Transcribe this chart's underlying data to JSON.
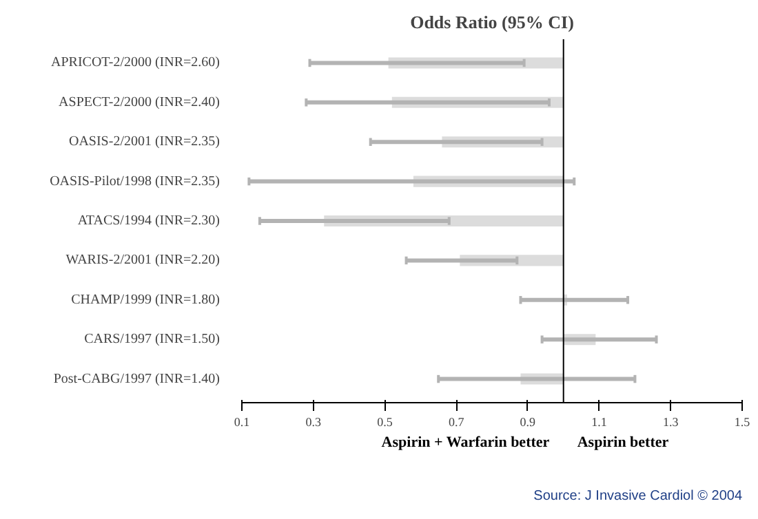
{
  "chart_data": {
    "type": "bar",
    "orientation": "horizontal",
    "title": "Odds Ratio (95% CI)",
    "categories": [
      "APRICOT-2/2000 (INR=2.60)",
      "ASPECT-2/2000 (INR=2.40)",
      "OASIS-2/2001 (INR=2.35)",
      "OASIS-Pilot/1998 (INR=2.35)",
      "ATACS/1994 (INR=2.30)",
      "WARIS-2/2001 (INR=2.20)",
      "CHAMP/1999 (INR=1.80)",
      "CARS/1997 (INR=1.50)",
      "Post-CABG/1997 (INR=1.40)"
    ],
    "base": [
      1.0,
      1.0,
      1.0,
      1.0,
      1.0,
      1.0,
      1.0,
      1.0,
      1.0
    ],
    "values": [
      -0.49,
      -0.48,
      -0.34,
      -0.42,
      -0.67,
      -0.29,
      0.01,
      0.09,
      -0.12
    ],
    "errors": [
      [
        0.29,
        0.89
      ],
      [
        0.28,
        0.96
      ],
      [
        0.46,
        0.94
      ],
      [
        0.12,
        1.03
      ],
      [
        0.15,
        0.68
      ],
      [
        0.56,
        0.87
      ],
      [
        0.88,
        1.18
      ],
      [
        0.94,
        1.26
      ],
      [
        0.65,
        1.2
      ]
    ],
    "color": "#dcdcdc",
    "xlim": [
      0.1,
      1.5
    ],
    "xticks": [
      0.1,
      0.3,
      0.5,
      0.7,
      0.9,
      1.1,
      1.3,
      1.5
    ],
    "ref_lines": [
      {
        "axis": "x",
        "value": 1.0,
        "label": null,
        "color": "#000000"
      }
    ],
    "annotations": [
      "Aspirin + Warfarin better",
      "Aspirin better",
      "Source: J Invasive Cardiol © 2004"
    ],
    "grid": false
  }
}
